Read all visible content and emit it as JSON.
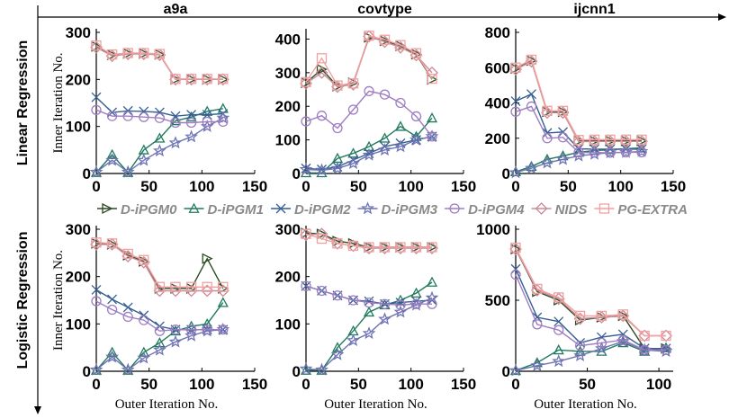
{
  "colors": {
    "D-iPGM0": "#2b4a22",
    "D-iPGM1": "#207a5e",
    "D-iPGM2": "#355f93",
    "D-iPGM3": "#6e74b4",
    "D-iPGM4": "#9e7dc2",
    "NIDS": "#c98b98",
    "PG-EXTRA": "#f2a0a0"
  },
  "legend": [
    "D-iPGM0",
    "D-iPGM1",
    "D-iPGM2",
    "D-iPGM3",
    "D-iPGM4",
    "NIDS",
    "PG-EXTRA"
  ],
  "row_labels": [
    "Linear Regression",
    "Logistic Regression"
  ],
  "column_titles": [
    "a9a",
    "covtype",
    "ijcnn1"
  ],
  "xlabel": "Outer Iteration No.",
  "ylabel": "Inner Iteration No.",
  "chart_data": [
    {
      "type": "line",
      "row": 0,
      "col": 0,
      "title": "a9a",
      "xlabel": "",
      "ylabel": "Inner Iteration No.",
      "xlim": [
        0,
        150
      ],
      "ylim": [
        0,
        300
      ],
      "xticks": [
        0,
        50,
        100,
        150
      ],
      "yticks": [
        0,
        100,
        200,
        300
      ],
      "series": [
        {
          "name": "D-iPGM0",
          "x": [
            0,
            15,
            30,
            45,
            60,
            75,
            90,
            105,
            120
          ],
          "y": [
            270,
            252,
            255,
            255,
            253,
            200,
            200,
            200,
            200
          ]
        },
        {
          "name": "D-iPGM1",
          "x": [
            0,
            15,
            30,
            45,
            60,
            75,
            90,
            105,
            120
          ],
          "y": [
            2,
            40,
            2,
            50,
            75,
            112,
            120,
            132,
            138
          ]
        },
        {
          "name": "D-iPGM2",
          "x": [
            0,
            15,
            30,
            45,
            60,
            75,
            90,
            105,
            120
          ],
          "y": [
            162,
            130,
            133,
            132,
            130,
            122,
            125,
            125,
            127
          ]
        },
        {
          "name": "D-iPGM3",
          "x": [
            0,
            15,
            30,
            45,
            60,
            75,
            90,
            105,
            120
          ],
          "y": [
            3,
            28,
            3,
            28,
            48,
            65,
            78,
            100,
            118
          ]
        },
        {
          "name": "D-iPGM4",
          "x": [
            0,
            15,
            30,
            45,
            60,
            75,
            90,
            105,
            120
          ],
          "y": [
            135,
            122,
            122,
            120,
            118,
            108,
            108,
            110,
            110
          ]
        },
        {
          "name": "NIDS",
          "x": [
            0,
            15,
            30,
            45,
            60,
            75,
            90,
            105,
            120
          ],
          "y": [
            268,
            250,
            254,
            254,
            252,
            200,
            200,
            200,
            200
          ]
        },
        {
          "name": "PG-EXTRA",
          "x": [
            0,
            15,
            30,
            45,
            60,
            75,
            90,
            105,
            120
          ],
          "y": [
            272,
            253,
            256,
            256,
            254,
            201,
            201,
            201,
            201
          ]
        }
      ]
    },
    {
      "type": "line",
      "row": 0,
      "col": 1,
      "title": "covtype",
      "xlabel": "",
      "ylabel": "",
      "xlim": [
        0,
        150
      ],
      "ylim": [
        0,
        420
      ],
      "xticks": [
        0,
        50,
        100,
        150
      ],
      "yticks": [
        0,
        100,
        200,
        300,
        400
      ],
      "series": [
        {
          "name": "D-iPGM0",
          "x": [
            0,
            15,
            30,
            45,
            60,
            75,
            90,
            105,
            120
          ],
          "y": [
            270,
            310,
            260,
            270,
            405,
            395,
            380,
            355,
            280
          ]
        },
        {
          "name": "D-iPGM1",
          "x": [
            0,
            15,
            30,
            45,
            60,
            75,
            90,
            105,
            120
          ],
          "y": [
            2,
            2,
            45,
            60,
            80,
            105,
            140,
            110,
            165
          ]
        },
        {
          "name": "D-iPGM2",
          "x": [
            0,
            15,
            30,
            45,
            60,
            75,
            90,
            105,
            120
          ],
          "y": [
            15,
            12,
            20,
            40,
            60,
            80,
            90,
            100,
            110
          ]
        },
        {
          "name": "D-iPGM3",
          "x": [
            0,
            15,
            30,
            45,
            60,
            75,
            90,
            105,
            120
          ],
          "y": [
            12,
            10,
            15,
            30,
            55,
            70,
            80,
            100,
            110
          ]
        },
        {
          "name": "D-iPGM4",
          "x": [
            0,
            15,
            30,
            45,
            60,
            75,
            90,
            105,
            120
          ],
          "y": [
            155,
            172,
            135,
            190,
            245,
            235,
            210,
            170,
            110
          ]
        },
        {
          "name": "NIDS",
          "x": [
            0,
            15,
            30,
            45,
            60,
            75,
            90,
            105,
            120
          ],
          "y": [
            268,
            300,
            258,
            265,
            408,
            392,
            375,
            352,
            300
          ]
        },
        {
          "name": "PG-EXTRA",
          "x": [
            0,
            15,
            30,
            45,
            60,
            75,
            90,
            105,
            120
          ],
          "y": [
            272,
            343,
            262,
            268,
            410,
            398,
            382,
            358,
            282
          ]
        }
      ]
    },
    {
      "type": "line",
      "row": 0,
      "col": 2,
      "title": "ijcnn1",
      "xlabel": "",
      "ylabel": "",
      "xlim": [
        0,
        150
      ],
      "ylim": [
        0,
        800
      ],
      "xticks": [
        0,
        50,
        100,
        150
      ],
      "yticks": [
        0,
        200,
        400,
        600,
        800
      ],
      "series": [
        {
          "name": "D-iPGM0",
          "x": [
            0,
            15,
            30,
            45,
            60,
            75,
            90,
            105,
            120
          ],
          "y": [
            595,
            640,
            350,
            350,
            185,
            185,
            185,
            185,
            185
          ]
        },
        {
          "name": "D-iPGM1",
          "x": [
            0,
            15,
            30,
            45,
            60,
            75,
            90,
            105,
            120
          ],
          "y": [
            10,
            40,
            80,
            100,
            120,
            130,
            135,
            140,
            145
          ]
        },
        {
          "name": "D-iPGM2",
          "x": [
            0,
            15,
            30,
            45,
            60,
            75,
            90,
            105,
            120
          ],
          "y": [
            410,
            450,
            230,
            235,
            140,
            138,
            138,
            138,
            138
          ]
        },
        {
          "name": "D-iPGM3",
          "x": [
            0,
            15,
            30,
            45,
            60,
            75,
            90,
            105,
            120
          ],
          "y": [
            5,
            30,
            60,
            80,
            100,
            110,
            118,
            120,
            125
          ]
        },
        {
          "name": "D-iPGM4",
          "x": [
            0,
            15,
            30,
            45,
            60,
            75,
            90,
            105,
            120
          ],
          "y": [
            350,
            380,
            200,
            205,
            120,
            118,
            118,
            120,
            120
          ]
        },
        {
          "name": "NIDS",
          "x": [
            0,
            15,
            30,
            45,
            60,
            75,
            90,
            105,
            120
          ],
          "y": [
            590,
            635,
            345,
            345,
            180,
            182,
            182,
            182,
            182
          ]
        },
        {
          "name": "PG-EXTRA",
          "x": [
            0,
            15,
            30,
            45,
            60,
            75,
            90,
            105,
            120
          ],
          "y": [
            600,
            645,
            355,
            355,
            190,
            192,
            192,
            192,
            192
          ]
        }
      ]
    },
    {
      "type": "line",
      "row": 1,
      "col": 0,
      "title": "",
      "xlabel": "Outer Iteration No.",
      "ylabel": "Inner Iteration No.",
      "xlim": [
        0,
        150
      ],
      "ylim": [
        0,
        300
      ],
      "xticks": [
        0,
        50,
        100,
        150
      ],
      "yticks": [
        0,
        100,
        200,
        300
      ],
      "series": [
        {
          "name": "D-iPGM0",
          "x": [
            0,
            15,
            30,
            45,
            60,
            75,
            90,
            105,
            120
          ],
          "y": [
            270,
            268,
            245,
            232,
            175,
            175,
            175,
            238,
            175
          ]
        },
        {
          "name": "D-iPGM1",
          "x": [
            0,
            15,
            30,
            45,
            60,
            75,
            90,
            105,
            120
          ],
          "y": [
            2,
            40,
            2,
            40,
            60,
            85,
            95,
            100,
            145
          ]
        },
        {
          "name": "D-iPGM2",
          "x": [
            0,
            15,
            30,
            45,
            60,
            75,
            90,
            105,
            120
          ],
          "y": [
            172,
            152,
            135,
            118,
            95,
            88,
            88,
            88,
            88
          ]
        },
        {
          "name": "D-iPGM3",
          "x": [
            0,
            15,
            30,
            45,
            60,
            75,
            90,
            105,
            120
          ],
          "y": [
            3,
            30,
            3,
            28,
            45,
            62,
            75,
            85,
            88
          ]
        },
        {
          "name": "D-iPGM4",
          "x": [
            0,
            15,
            30,
            45,
            60,
            75,
            90,
            105,
            120
          ],
          "y": [
            148,
            130,
            115,
            108,
            85,
            88,
            88,
            88,
            88
          ]
        },
        {
          "name": "NIDS",
          "x": [
            0,
            15,
            30,
            45,
            60,
            75,
            90,
            105,
            120
          ],
          "y": [
            268,
            268,
            243,
            230,
            170,
            170,
            170,
            170,
            170
          ]
        },
        {
          "name": "PG-EXTRA",
          "x": [
            0,
            15,
            30,
            45,
            60,
            75,
            90,
            105,
            120
          ],
          "y": [
            272,
            270,
            248,
            235,
            178,
            178,
            178,
            178,
            178
          ]
        }
      ]
    },
    {
      "type": "line",
      "row": 1,
      "col": 1,
      "title": "",
      "xlabel": "Outer Iteration No.",
      "ylabel": "",
      "xlim": [
        0,
        150
      ],
      "ylim": [
        0,
        300
      ],
      "xticks": [
        0,
        50,
        100,
        150
      ],
      "yticks": [
        0,
        100,
        200,
        300
      ],
      "series": [
        {
          "name": "D-iPGM0",
          "x": [
            0,
            15,
            30,
            45,
            60,
            75,
            90,
            105,
            120
          ],
          "y": [
            292,
            290,
            275,
            270,
            262,
            262,
            262,
            262,
            262
          ]
        },
        {
          "name": "D-iPGM1",
          "x": [
            0,
            15,
            30,
            45,
            60,
            75,
            90,
            105,
            120
          ],
          "y": [
            2,
            2,
            50,
            85,
            125,
            140,
            150,
            165,
            188
          ]
        },
        {
          "name": "D-iPGM2",
          "x": [
            0,
            15,
            30,
            45,
            60,
            75,
            90,
            105,
            120
          ],
          "y": [
            180,
            170,
            160,
            150,
            148,
            142,
            145,
            148,
            150
          ]
        },
        {
          "name": "D-iPGM3",
          "x": [
            0,
            15,
            30,
            45,
            60,
            75,
            90,
            105,
            120
          ],
          "y": [
            5,
            3,
            35,
            65,
            80,
            110,
            125,
            140,
            155
          ]
        },
        {
          "name": "D-iPGM4",
          "x": [
            0,
            15,
            30,
            45,
            60,
            75,
            90,
            105,
            120
          ],
          "y": [
            180,
            170,
            160,
            150,
            145,
            142,
            140,
            142,
            142
          ]
        },
        {
          "name": "NIDS",
          "x": [
            0,
            15,
            30,
            45,
            60,
            75,
            90,
            105,
            120
          ],
          "y": [
            288,
            290,
            270,
            265,
            260,
            260,
            260,
            260,
            260
          ]
        },
        {
          "name": "PG-EXTRA",
          "x": [
            0,
            15,
            30,
            45,
            60,
            75,
            90,
            105,
            120
          ],
          "y": [
            290,
            280,
            270,
            265,
            262,
            262,
            262,
            262,
            262
          ]
        }
      ]
    },
    {
      "type": "line",
      "row": 1,
      "col": 2,
      "title": "",
      "xlabel": "Outer Iteration No.",
      "ylabel": "",
      "xlim": [
        0,
        110
      ],
      "ylim": [
        0,
        1000
      ],
      "xticks": [
        0,
        50,
        100
      ],
      "yticks": [
        0,
        500,
        1000
      ],
      "series": [
        {
          "name": "D-iPGM0",
          "x": [
            0,
            15,
            30,
            45,
            60,
            75,
            90,
            105
          ],
          "y": [
            860,
            560,
            500,
            360,
            380,
            390,
            160,
            160
          ]
        },
        {
          "name": "D-iPGM1",
          "x": [
            0,
            15,
            30,
            45,
            60,
            75,
            90,
            105
          ],
          "y": [
            5,
            60,
            150,
            140,
            140,
            200,
            140,
            165
          ]
        },
        {
          "name": "D-iPGM2",
          "x": [
            0,
            15,
            30,
            45,
            60,
            75,
            90,
            105
          ],
          "y": [
            720,
            380,
            350,
            200,
            240,
            260,
            160,
            160
          ]
        },
        {
          "name": "D-iPGM3",
          "x": [
            0,
            15,
            30,
            45,
            60,
            75,
            90,
            105
          ],
          "y": [
            5,
            40,
            70,
            110,
            160,
            210,
            150,
            140
          ]
        },
        {
          "name": "D-iPGM4",
          "x": [
            0,
            15,
            30,
            45,
            60,
            75,
            90,
            105
          ],
          "y": [
            680,
            330,
            290,
            180,
            200,
            220,
            150,
            150
          ]
        },
        {
          "name": "NIDS",
          "x": [
            0,
            15,
            30,
            45,
            60,
            75,
            90,
            105
          ],
          "y": [
            860,
            570,
            510,
            370,
            380,
            390,
            250,
            250
          ]
        },
        {
          "name": "PG-EXTRA",
          "x": [
            0,
            15,
            30,
            45,
            60,
            75,
            90,
            105
          ],
          "y": [
            870,
            580,
            520,
            390,
            390,
            400,
            250,
            250
          ]
        }
      ]
    }
  ]
}
